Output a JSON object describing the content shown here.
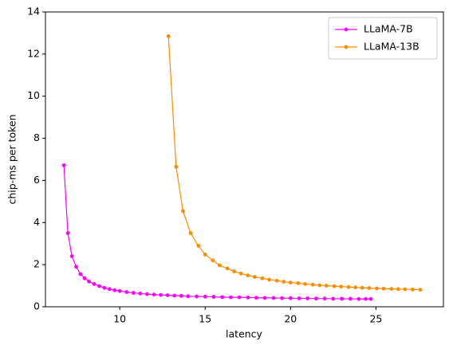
{
  "chart_data": {
    "type": "line",
    "xlabel": "latency",
    "ylabel": "chip-ms per token",
    "xlim": [
      5.65,
      28.95
    ],
    "ylim": [
      0,
      14
    ],
    "xticks": [
      10,
      15,
      20,
      25
    ],
    "yticks": [
      0,
      2,
      4,
      6,
      8,
      10,
      12,
      14
    ],
    "legend": "upper right",
    "series": [
      {
        "name": "LLaMA-7B",
        "color": "#ff00ff",
        "x": [
          6.73,
          6.96,
          7.2,
          7.45,
          7.7,
          7.95,
          8.2,
          8.5,
          8.8,
          9.1,
          9.4,
          9.7,
          10.0,
          10.4,
          10.8,
          11.2,
          11.6,
          12.0,
          12.4,
          12.8,
          13.2,
          13.6,
          14.0,
          14.5,
          15.0,
          15.5,
          16.0,
          16.5,
          17.0,
          17.5,
          18.0,
          18.5,
          19.0,
          19.5,
          20.0,
          20.5,
          21.0,
          21.5,
          22.0,
          22.5,
          23.0,
          23.5,
          24.0,
          24.4,
          24.7
        ],
        "values": [
          6.72,
          3.5,
          2.4,
          1.9,
          1.55,
          1.35,
          1.2,
          1.08,
          0.98,
          0.9,
          0.84,
          0.79,
          0.75,
          0.7,
          0.66,
          0.63,
          0.6,
          0.58,
          0.56,
          0.55,
          0.53,
          0.52,
          0.5,
          0.49,
          0.48,
          0.47,
          0.46,
          0.45,
          0.45,
          0.44,
          0.43,
          0.42,
          0.42,
          0.41,
          0.41,
          0.4,
          0.4,
          0.39,
          0.39,
          0.38,
          0.38,
          0.38,
          0.37,
          0.37,
          0.37
        ]
      },
      {
        "name": "LLaMA-13B",
        "color": "#ff8c00",
        "x": [
          12.85,
          13.3,
          13.7,
          14.15,
          14.6,
          15.0,
          15.45,
          15.85,
          16.3,
          16.7,
          17.1,
          17.5,
          17.9,
          18.35,
          18.75,
          19.2,
          19.6,
          20.0,
          20.45,
          20.85,
          21.3,
          21.7,
          22.1,
          22.55,
          22.95,
          23.4,
          23.8,
          24.2,
          24.6,
          25.05,
          25.45,
          25.9,
          26.3,
          26.7,
          27.15,
          27.6
        ],
        "values": [
          12.85,
          6.65,
          4.55,
          3.5,
          2.9,
          2.48,
          2.2,
          1.97,
          1.82,
          1.68,
          1.58,
          1.49,
          1.42,
          1.35,
          1.29,
          1.24,
          1.19,
          1.15,
          1.12,
          1.08,
          1.05,
          1.02,
          1.0,
          0.98,
          0.96,
          0.94,
          0.92,
          0.9,
          0.89,
          0.87,
          0.86,
          0.85,
          0.84,
          0.83,
          0.82,
          0.81
        ]
      }
    ]
  }
}
